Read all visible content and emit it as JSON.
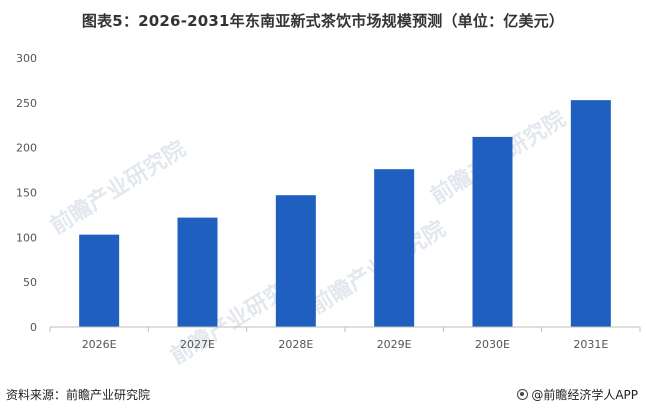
{
  "title": "图表5：2026-2031年东南亚新式茶饮市场规模预测（单位：亿美元）",
  "source": "资料来源：前瞻产业研究院",
  "logo_text": "@前瞻经济学人APP",
  "watermark": "前瞻产业研究院",
  "colors": {
    "bar": "#1e5fbf",
    "axis": "#bfbfbf",
    "text": "#555555"
  },
  "chart_data": {
    "type": "bar",
    "title": "图表5：2026-2031年东南亚新式茶饮市场规模预测（单位：亿美元）",
    "categories": [
      "2026E",
      "2027E",
      "2028E",
      "2029E",
      "2030E",
      "2031E"
    ],
    "values": [
      103,
      122,
      147,
      176,
      212,
      253
    ],
    "ylim": [
      0,
      300
    ],
    "yticks": [
      0,
      50,
      100,
      150,
      200,
      250,
      300
    ],
    "xlabel": "",
    "ylabel": "",
    "grid": false,
    "legend": "none"
  }
}
